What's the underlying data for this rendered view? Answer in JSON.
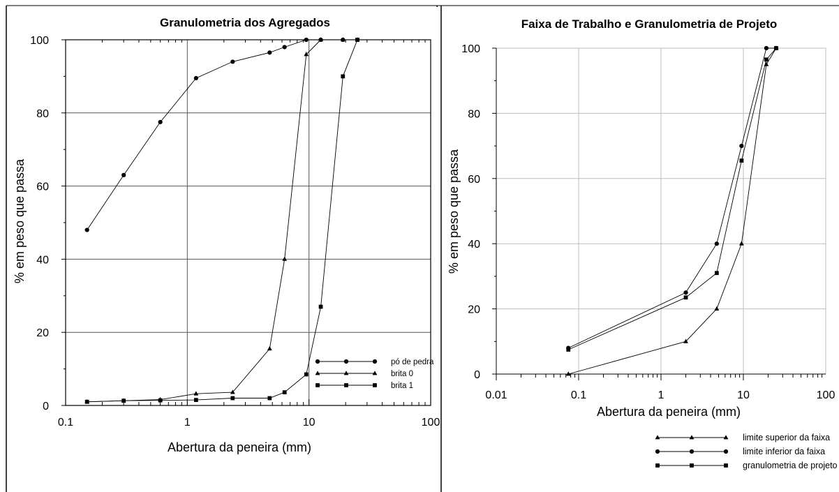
{
  "chart_data": [
    {
      "type": "line",
      "title": "Granulometria dos Agregados",
      "xlabel": "Abertura da peneira (mm)",
      "ylabel": "% em peso que passa",
      "xscale": "log",
      "xlim": [
        0.1,
        100
      ],
      "ylim": [
        0,
        100
      ],
      "x_tick_labels": [
        "0.1",
        "1",
        "10",
        "100"
      ],
      "y_tick_labels": [
        "0",
        "20",
        "40",
        "60",
        "80",
        "100"
      ],
      "grid": true,
      "legend_position": "lower-right",
      "series": [
        {
          "name": "pó de pedra",
          "marker": "circle",
          "x": [
            0.15,
            0.3,
            0.6,
            1.18,
            2.36,
            4.75,
            6.3,
            9.5,
            12.5,
            19,
            25
          ],
          "y": [
            48,
            63,
            77.5,
            89.5,
            94,
            96.5,
            98,
            100,
            100,
            100,
            100
          ]
        },
        {
          "name": "brita 0",
          "marker": "triangle",
          "x": [
            0.15,
            0.3,
            0.6,
            1.18,
            2.36,
            4.75,
            6.3,
            9.5,
            12.5,
            19,
            25
          ],
          "y": [
            1,
            1.3,
            1.6,
            3.2,
            3.6,
            15.5,
            40,
            96,
            100,
            100,
            100
          ]
        },
        {
          "name": "brita 1",
          "marker": "square",
          "x": [
            0.15,
            0.3,
            0.6,
            1.18,
            2.36,
            4.75,
            6.3,
            9.5,
            12.5,
            19,
            25
          ],
          "y": [
            1,
            1.3,
            1.4,
            1.5,
            2,
            2,
            3.6,
            8.5,
            27,
            90,
            100
          ]
        }
      ]
    },
    {
      "type": "line",
      "title": "Faixa de Trabalho e Granulometria de Projeto",
      "xlabel": "Abertura da peneira (mm)",
      "ylabel": "% em peso que passa",
      "xscale": "log",
      "xlim": [
        0.01,
        100
      ],
      "ylim": [
        0,
        100
      ],
      "x_tick_labels": [
        "0.01",
        "0.1",
        "1",
        "10",
        "100"
      ],
      "y_tick_labels": [
        "0",
        "20",
        "40",
        "60",
        "80",
        "100"
      ],
      "grid": true,
      "legend_position": "bottom-right",
      "series": [
        {
          "name": "limite superior da faixa",
          "marker": "triangle",
          "x": [
            0.075,
            2,
            4.75,
            9.5,
            19,
            25
          ],
          "y": [
            0,
            10,
            20,
            40,
            95,
            100
          ]
        },
        {
          "name": "limite inferior da faixa",
          "marker": "circle",
          "x": [
            0.075,
            2,
            4.75,
            9.5,
            19,
            25
          ],
          "y": [
            8,
            25,
            40,
            70,
            100,
            100
          ]
        },
        {
          "name": "granulometria de projeto",
          "marker": "square",
          "x": [
            0.075,
            2,
            4.75,
            9.5,
            19,
            25
          ],
          "y": [
            7.5,
            23.5,
            31,
            65.5,
            96.5,
            100
          ]
        }
      ]
    }
  ],
  "page": {
    "stray_mark": "."
  }
}
